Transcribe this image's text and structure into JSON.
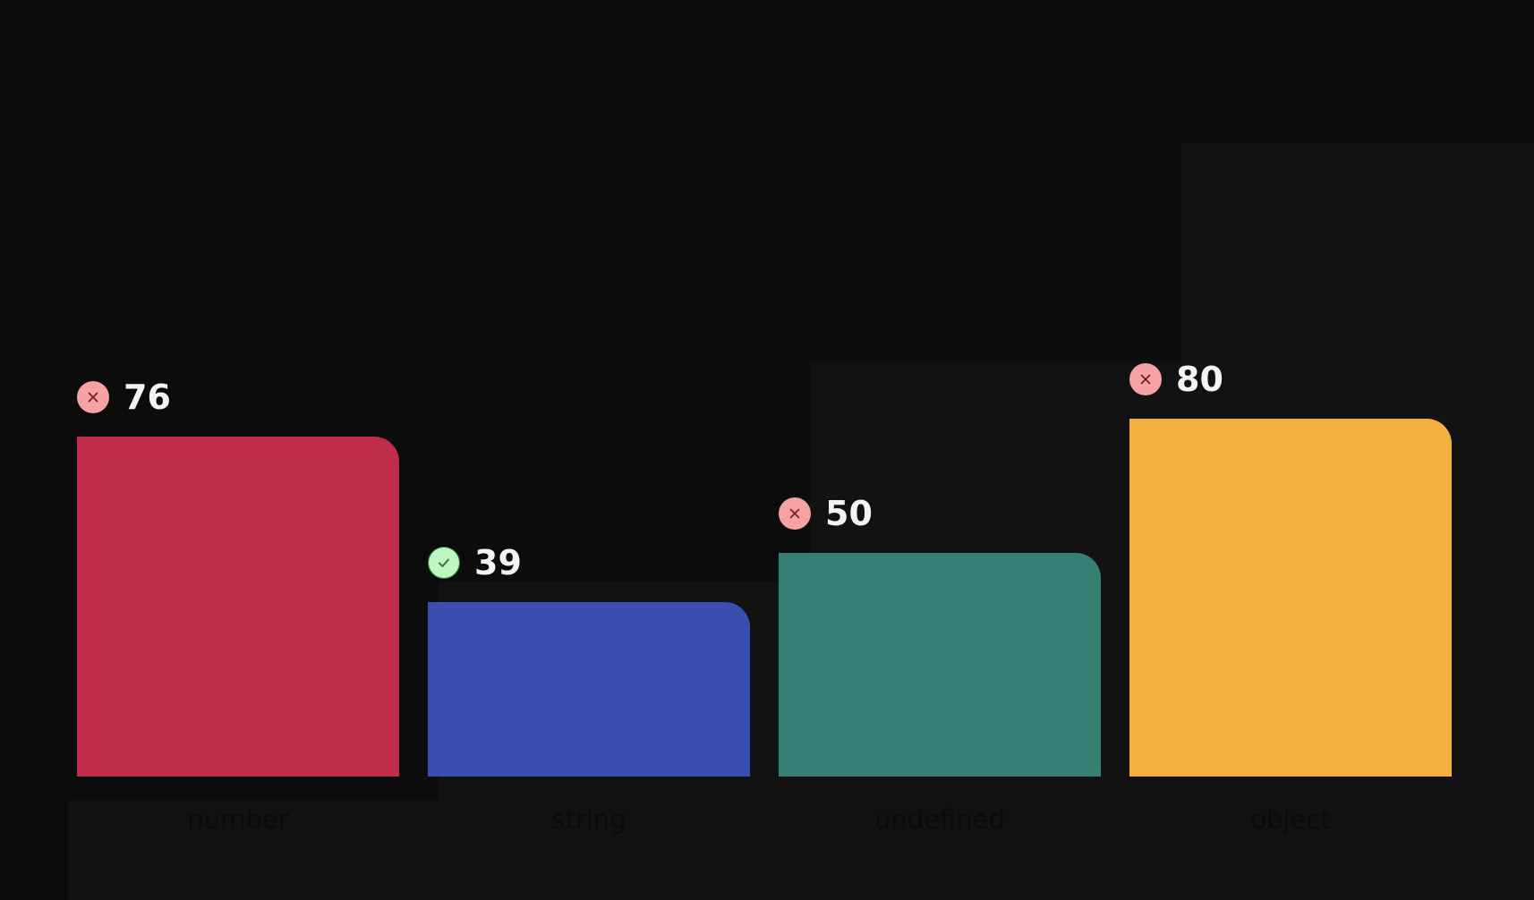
{
  "chart_data": {
    "type": "bar",
    "categories": [
      "number",
      "string",
      "undefined",
      "object"
    ],
    "values": [
      76,
      39,
      50,
      80
    ],
    "status": [
      "incorrect",
      "correct",
      "incorrect",
      "incorrect"
    ],
    "colors": [
      "#c02c49",
      "#3a4db0",
      "#367f74",
      "#f2b13f"
    ],
    "status_icons": {
      "incorrect": "close-icon",
      "correct": "check-icon"
    },
    "status_colors": {
      "incorrect": {
        "fill": "#f6a2a2",
        "stroke": "#6a1b1b"
      },
      "correct": {
        "fill": "#bff5c0",
        "stroke": "#2e7d32"
      }
    },
    "ylim": [
      0,
      100
    ],
    "grid": false,
    "title": "",
    "xlabel": "",
    "ylabel": ""
  }
}
